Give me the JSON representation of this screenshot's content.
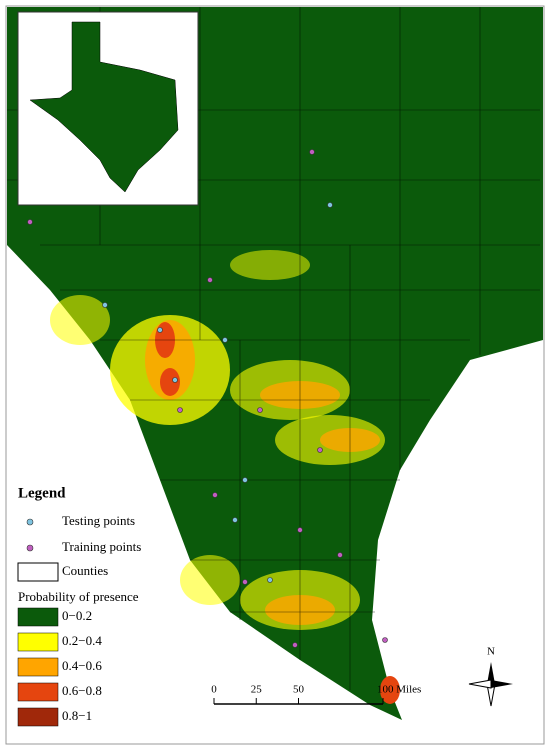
{
  "legend": {
    "title": "Legend",
    "points": [
      {
        "label": "Testing points",
        "color": "#7fc4e0"
      },
      {
        "label": "Training points",
        "color": "#c05fc0"
      }
    ],
    "counties": "Counties",
    "raster_title": "Probability of presence",
    "classes": [
      {
        "label": "0−0.2",
        "color": "#0b5a0b"
      },
      {
        "label": "0.2−0.4",
        "color": "#ffff00"
      },
      {
        "label": "0.4−0.6",
        "color": "#ffa500"
      },
      {
        "label": "0.6−0.8",
        "color": "#e5450f"
      },
      {
        "label": "0.8−1",
        "color": "#a0280a"
      }
    ]
  },
  "scale_bar": {
    "ticks": [
      0,
      25,
      50,
      {
        "value": 100,
        "label": "100 Miles"
      }
    ]
  },
  "north_arrow": "N"
}
